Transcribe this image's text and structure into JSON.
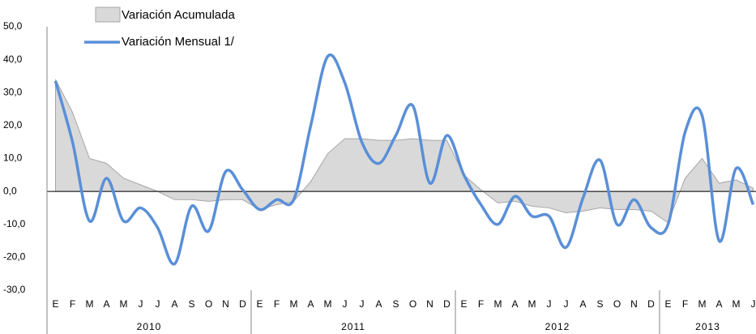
{
  "chart_data": {
    "type": "line",
    "categories": [
      "E",
      "F",
      "M",
      "A",
      "M",
      "J",
      "J",
      "A",
      "S",
      "O",
      "N",
      "D",
      "E",
      "F",
      "M",
      "A",
      "M",
      "J",
      "J",
      "A",
      "S",
      "O",
      "N",
      "D",
      "E",
      "F",
      "M",
      "A",
      "M",
      "J",
      "J",
      "A",
      "S",
      "O",
      "N",
      "D",
      "E",
      "F",
      "M",
      "A",
      "M",
      "J"
    ],
    "years": [
      "2010",
      "2011",
      "2012",
      "2013"
    ],
    "series": [
      {
        "name": "Variación Acumulada",
        "kind": "area",
        "color": "#d9d9d9",
        "values": [
          34,
          24,
          10,
          8.5,
          4,
          2,
          0,
          -2.5,
          -2.5,
          -3,
          -2.5,
          -2.5,
          -5.5,
          -4,
          -3,
          3,
          11.5,
          16,
          16,
          15.5,
          15.5,
          16,
          15.5,
          15.5,
          5,
          0.5,
          -3.5,
          -3,
          -4.5,
          -5,
          -6.5,
          -6,
          -5,
          -5.5,
          -5.5,
          -6,
          -9.5,
          4,
          10,
          2.5,
          3.5,
          1
        ]
      },
      {
        "name": "Variación Mensual 1/",
        "kind": "line",
        "color": "#5a8fd8",
        "values": [
          33.5,
          15,
          -9,
          4,
          -9,
          -5,
          -11,
          -22,
          -4.5,
          -12,
          6,
          0.5,
          -5.5,
          -2.5,
          -2.5,
          20,
          41,
          33,
          15,
          8.5,
          17,
          26,
          2.5,
          17,
          5,
          -4,
          -10,
          -1.5,
          -7.5,
          -7.5,
          -17,
          -2,
          9.5,
          -10,
          -2.5,
          -11,
          -10,
          18,
          23,
          -15,
          7,
          -4
        ]
      }
    ],
    "ylim": [
      -30,
      50
    ],
    "yticks": [
      {
        "value": -30,
        "label": "-30,0"
      },
      {
        "value": -20,
        "label": "-20,0"
      },
      {
        "value": -10,
        "label": "-10,0"
      },
      {
        "value": 0,
        "label": "0,0"
      },
      {
        "value": 10,
        "label": "10,0"
      },
      {
        "value": 20,
        "label": "20,0"
      },
      {
        "value": 30,
        "label": "30,0"
      },
      {
        "value": 40,
        "label": "40,0"
      },
      {
        "value": 50,
        "label": "50,0"
      }
    ]
  }
}
